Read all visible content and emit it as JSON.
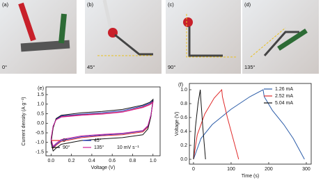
{
  "photos": [
    {
      "label": "(a)",
      "caption": "0°"
    },
    {
      "label": "(b)",
      "caption": "45°"
    },
    {
      "label": "(c)",
      "caption": "90°"
    },
    {
      "label": "(d)",
      "caption": "135°"
    }
  ],
  "chart_data": [
    {
      "type": "line",
      "panel_label": "(e)",
      "x_label": "Voltage (V)",
      "y_label": "Current density (A g⁻¹)",
      "annotation": "10 mV s⁻¹",
      "legend": "lower left",
      "xlim": [
        -0.05,
        1.07
      ],
      "ylim": [
        -1.7,
        1.9
      ],
      "xticks": [
        {
          "value": 0,
          "label": "0.0"
        },
        0.2,
        0.4,
        0.6,
        0.8,
        {
          "value": 1,
          "label": "1.0"
        }
      ],
      "yticks": [
        -1.5,
        {
          "value": -1,
          "label": "-1.0"
        },
        -0.5,
        {
          "value": 0,
          "label": "0.0"
        },
        0.5,
        {
          "value": 1,
          "label": "1.0"
        },
        1.5
      ],
      "series": [
        {
          "name": "0°",
          "color": "#e8242a",
          "x": [
            0,
            0.02,
            0.05,
            0.1,
            0.3,
            0.5,
            0.7,
            0.9,
            0.97,
            1.0,
            0.98,
            0.95,
            0.9,
            0.7,
            0.5,
            0.3,
            0.1,
            0.05,
            0.02,
            0
          ],
          "values": [
            -0.9,
            -0.2,
            0.2,
            0.35,
            0.45,
            0.5,
            0.6,
            0.85,
            1.0,
            1.15,
            0.4,
            -0.2,
            -0.45,
            -0.6,
            -0.65,
            -0.75,
            -0.95,
            -1.15,
            -1.3,
            -0.9
          ]
        },
        {
          "name": "45°",
          "color": "#2340c8",
          "x": [
            0,
            0.02,
            0.05,
            0.1,
            0.3,
            0.5,
            0.7,
            0.9,
            0.97,
            1.0,
            0.98,
            0.95,
            0.9,
            0.7,
            0.5,
            0.3,
            0.1,
            0.05,
            0.02,
            0
          ],
          "values": [
            -0.85,
            -0.15,
            0.22,
            0.38,
            0.48,
            0.55,
            0.65,
            0.9,
            1.05,
            1.2,
            0.45,
            -0.15,
            -0.4,
            -0.55,
            -0.62,
            -0.7,
            -0.9,
            -1.1,
            -1.25,
            -0.85
          ]
        },
        {
          "name": "90°",
          "color": "#111111",
          "x": [
            0,
            0.02,
            0.05,
            0.1,
            0.3,
            0.5,
            0.7,
            0.9,
            0.97,
            1.0,
            0.98,
            0.95,
            0.9,
            0.7,
            0.5,
            0.3,
            0.1,
            0.05,
            0.02,
            0
          ],
          "values": [
            -1.0,
            -0.25,
            0.25,
            0.42,
            0.55,
            0.62,
            0.72,
            0.95,
            1.1,
            1.25,
            0.35,
            -0.3,
            -0.6,
            -0.75,
            -0.82,
            -0.9,
            -1.1,
            -1.3,
            -1.45,
            -1.0
          ]
        },
        {
          "name": "135°",
          "color": "#d0209a",
          "x": [
            0,
            0.02,
            0.05,
            0.1,
            0.3,
            0.5,
            0.7,
            0.9,
            0.97,
            1.0,
            0.98,
            0.95,
            0.9,
            0.7,
            0.5,
            0.3,
            0.1,
            0.05,
            0.02,
            0
          ],
          "values": [
            -0.8,
            -0.15,
            0.18,
            0.32,
            0.42,
            0.48,
            0.58,
            0.82,
            0.97,
            1.1,
            0.42,
            -0.12,
            -0.38,
            -0.52,
            -0.58,
            -0.66,
            -0.85,
            -1.05,
            -1.2,
            -0.8
          ]
        }
      ]
    },
    {
      "type": "line",
      "panel_label": "(f)",
      "x_label": "Time (s)",
      "y_label": "Voltage (V)",
      "legend": "upper right",
      "xlim": [
        -11,
        313
      ],
      "ylim": [
        -0.07,
        1.09
      ],
      "xticks": [
        0,
        100,
        200,
        300
      ],
      "yticks": [
        {
          "value": 0,
          "label": "0.0"
        },
        0.2,
        0.4,
        0.6,
        0.8,
        {
          "value": 1,
          "label": "1.0"
        }
      ],
      "series": [
        {
          "name": "1.26 mA",
          "color": "#2b5ca8",
          "x": [
            0,
            20,
            50,
            100,
            150,
            185,
            188,
            210,
            240,
            265,
            285,
            295
          ],
          "values": [
            0,
            0.3,
            0.5,
            0.72,
            0.9,
            1.0,
            0.9,
            0.7,
            0.5,
            0.3,
            0.1,
            0
          ]
        },
        {
          "name": "2.52 mA",
          "color": "#e02a2a",
          "x": [
            0,
            10,
            30,
            55,
            75,
            77,
            90,
            105,
            120
          ],
          "values": [
            0,
            0.35,
            0.65,
            0.88,
            1.0,
            0.9,
            0.6,
            0.3,
            0
          ]
        },
        {
          "name": "5.04 mA",
          "color": "#111111",
          "x": [
            0,
            5,
            12,
            18,
            19,
            25,
            32
          ],
          "values": [
            0,
            0.45,
            0.8,
            1.0,
            0.9,
            0.45,
            0
          ]
        }
      ]
    }
  ]
}
